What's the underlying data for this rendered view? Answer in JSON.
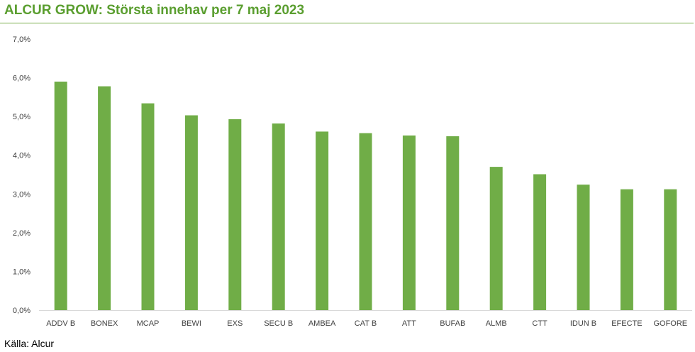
{
  "title": "ALCUR GROW: Största innehav per 7 maj 2023",
  "source": "Källa: Alcur",
  "colors": {
    "bar": "#70ad47",
    "title": "#5a9e2f",
    "axis": "#d9d9d9"
  },
  "chart_data": {
    "type": "bar",
    "categories": [
      "ADDV B",
      "BONEX",
      "MCAP",
      "BEWI",
      "EXS",
      "SECU B",
      "AMBEA",
      "CAT B",
      "ATT",
      "BUFAB",
      "ALMB",
      "CTT",
      "IDUN B",
      "EFECTE",
      "GOFORE"
    ],
    "values": [
      5.9,
      5.78,
      5.34,
      5.03,
      4.93,
      4.82,
      4.61,
      4.57,
      4.51,
      4.49,
      3.7,
      3.51,
      3.24,
      3.12,
      3.12
    ],
    "ylim": [
      0,
      7
    ],
    "yticks": [
      "0,0%",
      "1,0%",
      "2,0%",
      "3,0%",
      "4,0%",
      "5,0%",
      "6,0%",
      "7,0%"
    ],
    "ytick_values": [
      0,
      1,
      2,
      3,
      4,
      5,
      6,
      7
    ],
    "grid": false
  }
}
